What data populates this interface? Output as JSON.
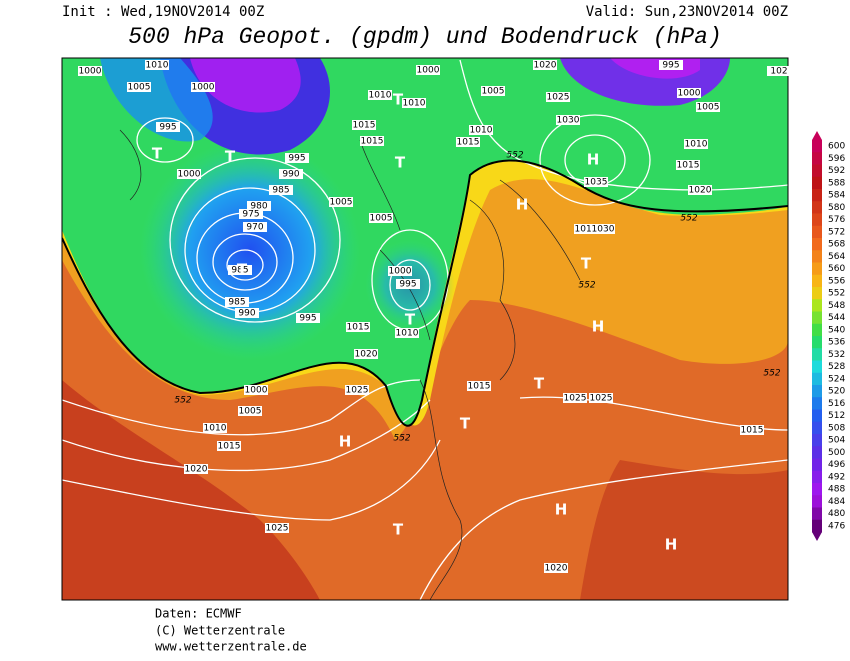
{
  "header": {
    "init": "Init : Wed,19NOV2014 00Z",
    "valid": "Valid: Sun,23NOV2014 00Z",
    "title": "500 hPa Geopot. (gpdm) und Bodendruck (hPa)"
  },
  "map": {
    "isobar_labels": [
      "1000",
      "1010",
      "1005",
      "1000",
      "995",
      "1000",
      "995",
      "990",
      "985",
      "980",
      "975",
      "970",
      "985",
      "985",
      "990",
      "995",
      "1010",
      "1010",
      "1015",
      "1015",
      "1005",
      "1005",
      "1000",
      "995",
      "1010",
      "1015",
      "1020",
      "1025",
      "1000",
      "1005",
      "1010",
      "1015",
      "1020",
      "1025",
      "1020",
      "1015",
      "1025",
      "1025",
      "1015",
      "1010",
      "1030",
      "1000",
      "1005",
      "1010",
      "1015",
      "1020",
      "1025",
      "1030",
      "1035",
      "995",
      "1000",
      "1005",
      "1010",
      "1015",
      "1020",
      "102"
    ],
    "height_labels": [
      "552",
      "552",
      "552",
      "552",
      "552",
      "552"
    ],
    "pressure_centers": [
      "T",
      "T",
      "T",
      "T",
      "T",
      "T",
      "H",
      "H",
      "T",
      "H",
      "T",
      "T",
      "H",
      "T",
      "H",
      "H"
    ]
  },
  "legend": {
    "levels": [
      600,
      596,
      592,
      588,
      584,
      580,
      576,
      572,
      568,
      564,
      560,
      556,
      552,
      548,
      544,
      540,
      536,
      532,
      528,
      524,
      520,
      516,
      512,
      508,
      504,
      500,
      496,
      492,
      488,
      484,
      480,
      476
    ]
  },
  "footer": {
    "source": "Daten: ECMWF",
    "copyright": "(C) Wetterzentrale",
    "url": "www.wetterzentrale.de"
  }
}
